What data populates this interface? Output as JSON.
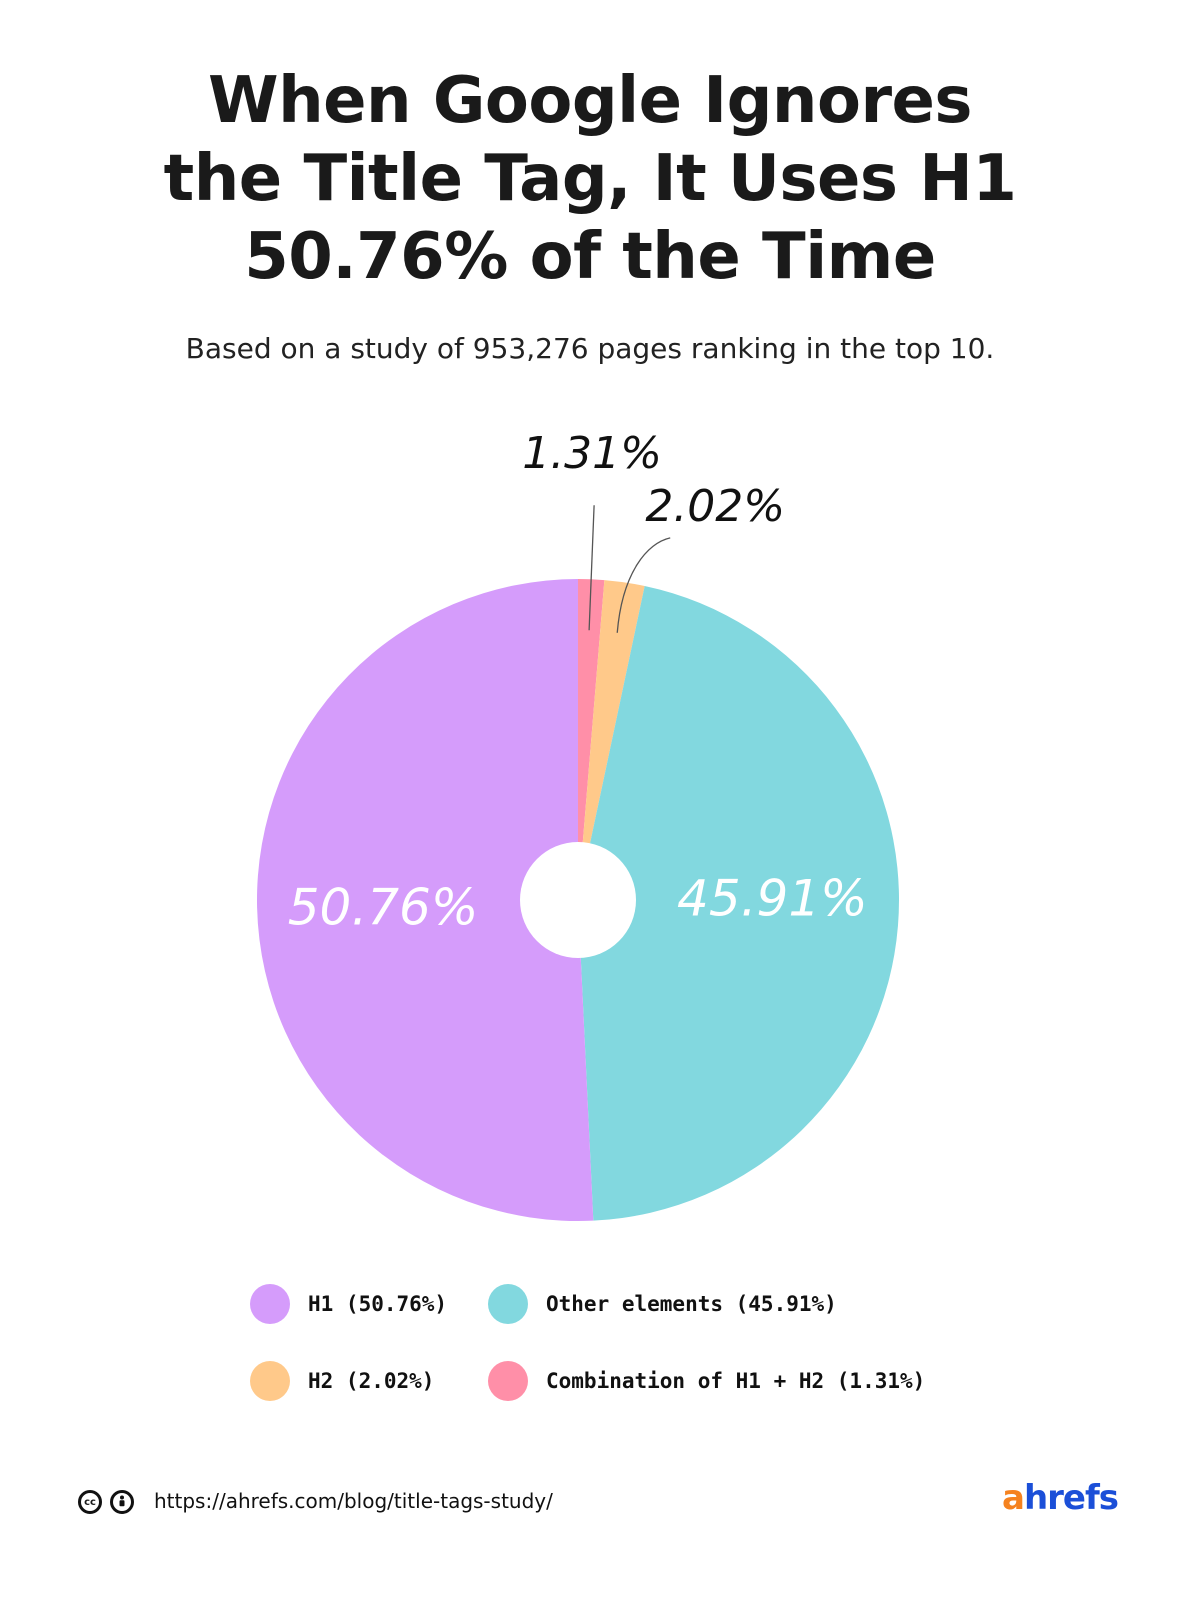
{
  "header": {
    "title_lines": [
      "When Google Ignores",
      "the Title Tag, It Uses H1",
      "50.76% of the Time"
    ],
    "subtitle": "Based on a study of 953,276 pages ranking in the top 10."
  },
  "chart_data": {
    "type": "pie",
    "categories": [
      "Combination of H1 + H2",
      "H2",
      "Other elements",
      "H1"
    ],
    "values": [
      1.31,
      2.02,
      45.91,
      50.76
    ],
    "data_labels": [
      "1.31%",
      "2.02%",
      "45.91%",
      "50.76%"
    ],
    "colors": [
      "#ff8fa8",
      "#ffc98a",
      "#82d8df",
      "#d59cfb"
    ],
    "start": "12 o'clock, clockwise",
    "donut_hole": true
  },
  "legend": {
    "items": [
      {
        "label": "H1 (50.76%)",
        "color": "#d59cfb"
      },
      {
        "label": "Other elements (45.91%)",
        "color": "#82d8df"
      },
      {
        "label": "H2 (2.02%)",
        "color": "#ffc98a"
      },
      {
        "label": "Combination of H1 + H2 (1.31%)",
        "color": "#ff8fa8"
      }
    ]
  },
  "footer": {
    "url": "https://ahrefs.com/blog/title-tags-study/",
    "brand_a": "a",
    "brand_rest": "hrefs",
    "license_icons": [
      "cc-icon",
      "by-icon"
    ]
  }
}
